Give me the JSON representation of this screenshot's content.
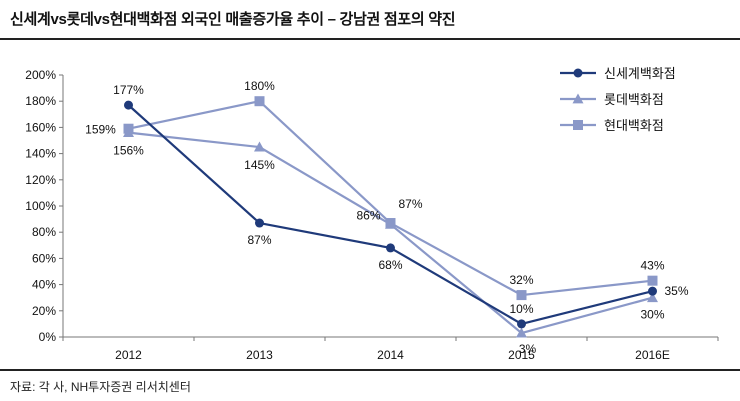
{
  "header": {
    "title": "신세계vs롯데vs현대백화점 외국인 매출증가율 추이 – 강남권 점포의 약진"
  },
  "footer": {
    "source": "자료: 각 사, NH투자증권 리서치센터"
  },
  "colors": {
    "series_dark": "#1f3a7a",
    "series_light": "#8a98c8",
    "axis": "#777777"
  },
  "chart_data": {
    "type": "line",
    "title": "신세계vs롯데vs현대백화점 외국인 매출증가율 추이 – 강남권 점포의 약진",
    "xlabel": "",
    "ylabel": "",
    "categories": [
      "2012",
      "2013",
      "2014",
      "2015",
      "2016E"
    ],
    "ylim": [
      0,
      200
    ],
    "yticks": [
      0,
      20,
      40,
      60,
      80,
      100,
      120,
      140,
      160,
      180,
      200
    ],
    "ytick_labels": [
      "0%",
      "20%",
      "40%",
      "60%",
      "80%",
      "100%",
      "120%",
      "140%",
      "160%",
      "180%",
      "200%"
    ],
    "legend_position": "top-right",
    "series": [
      {
        "name": "신세계백화점",
        "marker": "circle",
        "values": [
          177,
          87,
          68,
          10,
          35
        ],
        "labels": [
          "177%",
          "87%",
          "68%",
          "10%",
          "35%"
        ]
      },
      {
        "name": "롯데백화점",
        "marker": "triangle",
        "values": [
          156,
          145,
          86,
          3,
          30
        ],
        "labels": [
          "156%",
          "145%",
          "86%",
          "3%",
          "30%"
        ]
      },
      {
        "name": "현대백화점",
        "marker": "square",
        "values": [
          159,
          180,
          87,
          32,
          43
        ],
        "labels": [
          "159%",
          "180%",
          "87%",
          "32%",
          "43%"
        ]
      }
    ]
  }
}
